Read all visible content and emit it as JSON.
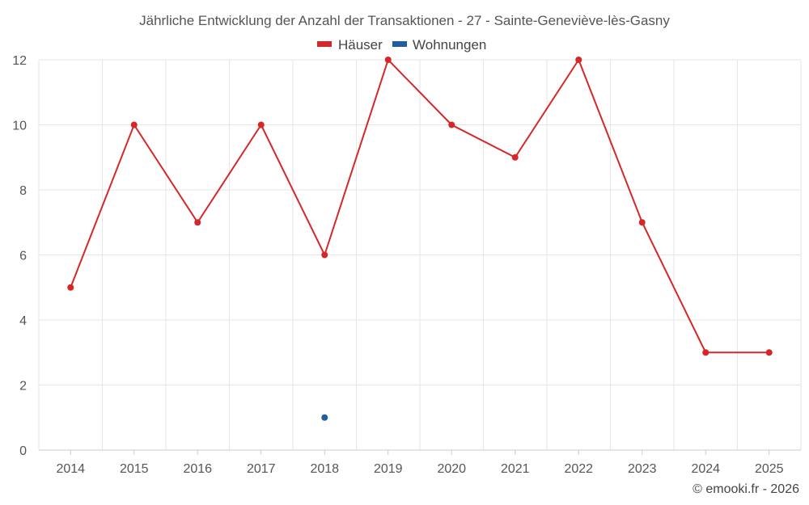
{
  "chart_data": {
    "type": "line",
    "title": "Jährliche Entwicklung der Anzahl der Transaktionen - 27 - Sainte-Geneviève-lès-Gasny",
    "xlabel": "",
    "ylabel": "",
    "categories": [
      "2014",
      "2015",
      "2016",
      "2017",
      "2018",
      "2019",
      "2020",
      "2021",
      "2022",
      "2023",
      "2024",
      "2025"
    ],
    "series": [
      {
        "name": "Häuser",
        "color": "#d62728",
        "values": [
          5,
          10,
          7,
          10,
          6,
          12,
          10,
          9,
          12,
          7,
          3,
          3
        ]
      },
      {
        "name": "Wohnungen",
        "color": "#1f5fa0",
        "values": [
          null,
          null,
          null,
          null,
          1,
          null,
          null,
          null,
          null,
          null,
          null,
          null
        ]
      }
    ],
    "ylim": [
      0,
      12
    ],
    "yticks": [
      0,
      2,
      4,
      6,
      8,
      10,
      12
    ],
    "grid": true,
    "legend_position": "top-center"
  },
  "credit": "© emooki.fr - 2026"
}
